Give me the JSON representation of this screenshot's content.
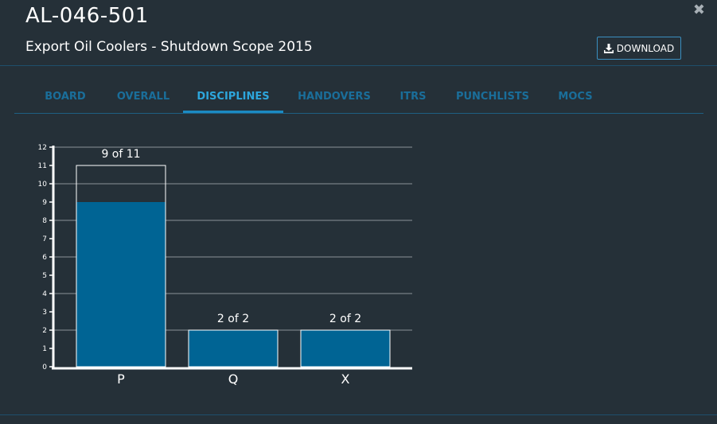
{
  "header": {
    "title": "AL-046-501",
    "subtitle": "Export Oil Coolers - Shutdown Scope 2015",
    "download_label": "DOWNLOAD",
    "close_glyph": "✖"
  },
  "tabs": [
    {
      "label": "BOARD",
      "active": false
    },
    {
      "label": "OVERALL",
      "active": false
    },
    {
      "label": "DISCIPLINES",
      "active": true
    },
    {
      "label": "HANDOVERS",
      "active": false
    },
    {
      "label": "ITRS",
      "active": false
    },
    {
      "label": "PUNCHLISTS",
      "active": false
    },
    {
      "label": "MOCS",
      "active": false
    }
  ],
  "colors": {
    "background": "#253038",
    "accent": "#2da6dc",
    "tab_inactive": "#1a6e9a",
    "bar_fill": "#006494",
    "bar_outline": "#ffffff"
  },
  "icons": {
    "download": "download-icon",
    "close": "close-icon"
  },
  "chart_data": {
    "type": "bar",
    "categories": [
      "P",
      "Q",
      "X"
    ],
    "series": [
      {
        "values": [
          9,
          2,
          2
        ]
      },
      {
        "values": [
          11,
          2,
          2
        ]
      }
    ],
    "data_labels": [
      "9 of 11",
      "2 of 2",
      "2 of 2"
    ],
    "yticks": [
      "0",
      "1",
      "2",
      "3",
      "4",
      "5",
      "6",
      "7",
      "8",
      "9",
      "10",
      "11",
      "12"
    ],
    "ylim": [
      0,
      12
    ],
    "grid": true
  }
}
